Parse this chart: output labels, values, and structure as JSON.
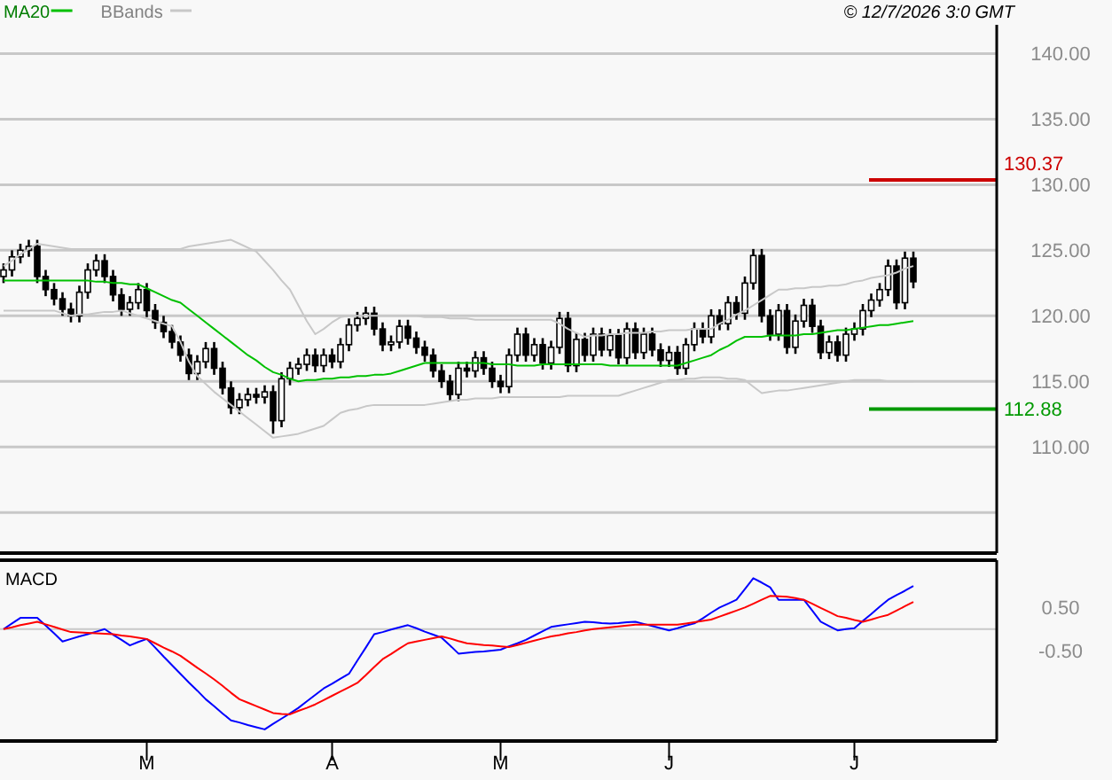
{
  "chart_data": [
    {
      "type": "candlestick",
      "legend": "top left",
      "grid": "y",
      "tick_labels": "y",
      "annotations": [
        "© 12/7/2026 3:0 GMT"
      ],
      "categories": [
        null,
        null,
        null,
        null,
        null,
        null,
        null,
        null,
        null,
        null,
        null,
        null,
        null,
        null,
        null,
        null,
        null,
        null,
        null,
        null,
        null,
        null,
        null,
        null,
        null,
        null,
        null,
        null,
        null,
        null,
        null,
        null,
        null,
        null,
        null,
        null,
        null,
        null,
        null,
        null,
        null,
        null,
        null,
        null,
        null,
        null,
        null,
        null,
        null,
        null,
        null,
        null,
        null,
        null,
        null,
        null,
        null,
        null,
        null,
        null,
        null,
        null,
        null,
        null,
        null,
        null,
        null,
        null,
        null,
        null,
        null,
        null,
        null,
        null,
        null,
        null,
        null,
        null,
        null,
        null,
        null,
        null,
        null,
        null,
        null,
        null,
        null,
        null,
        null,
        null,
        null,
        null,
        null,
        null,
        null,
        null,
        null,
        null,
        null,
        null,
        null,
        null,
        null,
        null,
        null,
        null,
        null,
        null,
        null
      ],
      "ylim": [
        101.9,
        142.2
      ],
      "yticks": [
        {
          "value": 105,
          "label": null
        },
        {
          "value": 110,
          "label": "110.00"
        },
        {
          "value": 115,
          "label": "115.00"
        },
        {
          "value": 120,
          "label": "120.00"
        },
        {
          "value": 125,
          "label": "125.00"
        },
        {
          "value": 130,
          "label": "130.00"
        },
        {
          "value": 135,
          "label": "135.00"
        },
        {
          "value": 140,
          "label": "140.00"
        }
      ],
      "ref_lines": [
        {
          "axis": "y",
          "value": 130.37,
          "label": "130.37",
          "color": "#cc0000"
        },
        {
          "axis": "y",
          "value": 112.88,
          "label": "112.88",
          "color": "#009900"
        }
      ],
      "ohlc": [
        [
          123.0,
          124.0,
          122.5,
          123.5
        ],
        [
          123.5,
          125.0,
          123.0,
          124.5
        ],
        [
          124.5,
          125.5,
          124.0,
          125.0
        ],
        [
          125.0,
          125.8,
          124.5,
          125.3
        ],
        [
          125.3,
          125.8,
          122.5,
          123.0
        ],
        [
          123.0,
          123.5,
          121.5,
          122.0
        ],
        [
          122.0,
          122.5,
          120.8,
          121.3
        ],
        [
          121.3,
          121.8,
          120.0,
          120.5
        ],
        [
          120.5,
          121.0,
          119.5,
          120.0
        ],
        [
          120.0,
          122.3,
          119.5,
          121.8
        ],
        [
          121.8,
          124.0,
          121.3,
          123.5
        ],
        [
          123.5,
          124.7,
          123.0,
          124.2
        ],
        [
          124.2,
          124.7,
          122.5,
          123.0
        ],
        [
          123.0,
          123.5,
          121.1,
          121.6
        ],
        [
          121.6,
          122.1,
          120.0,
          120.5
        ],
        [
          120.5,
          121.5,
          120.0,
          121.0
        ],
        [
          121.0,
          122.5,
          120.5,
          122.0
        ],
        [
          122.0,
          122.5,
          119.9,
          120.4
        ],
        [
          120.4,
          120.9,
          119.0,
          119.5
        ],
        [
          119.5,
          120.0,
          118.3,
          118.8
        ],
        [
          118.8,
          119.3,
          117.5,
          118.0
        ],
        [
          118.0,
          118.5,
          116.5,
          117.0
        ],
        [
          117.0,
          117.5,
          115.1,
          115.6
        ],
        [
          115.6,
          117.0,
          115.1,
          116.5
        ],
        [
          116.5,
          118.0,
          116.0,
          117.5
        ],
        [
          117.5,
          118.0,
          115.5,
          116.0
        ],
        [
          116.0,
          116.5,
          114.0,
          114.5
        ],
        [
          114.5,
          115.0,
          112.5,
          113.0
        ],
        [
          113.0,
          114.1,
          112.5,
          113.6
        ],
        [
          113.6,
          114.5,
          113.1,
          114.0
        ],
        [
          114.0,
          114.5,
          113.3,
          113.8
        ],
        [
          113.8,
          114.7,
          113.3,
          114.2
        ],
        [
          114.2,
          114.7,
          111.0,
          112.0
        ],
        [
          112.0,
          115.7,
          111.5,
          115.2
        ],
        [
          115.2,
          116.5,
          114.7,
          116.0
        ],
        [
          116.0,
          116.8,
          115.5,
          116.3
        ],
        [
          116.3,
          117.5,
          115.8,
          117.0
        ],
        [
          117.0,
          117.5,
          115.7,
          116.2
        ],
        [
          116.2,
          117.5,
          115.7,
          117.0
        ],
        [
          117.0,
          117.5,
          116.0,
          116.5
        ],
        [
          116.5,
          118.3,
          116.0,
          117.8
        ],
        [
          117.8,
          119.8,
          117.3,
          119.3
        ],
        [
          119.3,
          120.3,
          118.8,
          119.8
        ],
        [
          119.8,
          120.7,
          119.3,
          120.2
        ],
        [
          120.2,
          120.7,
          118.5,
          119.0
        ],
        [
          119.0,
          119.5,
          117.3,
          117.8
        ],
        [
          117.8,
          118.5,
          117.3,
          118.0
        ],
        [
          118.0,
          119.7,
          117.5,
          119.2
        ],
        [
          119.2,
          119.7,
          117.8,
          118.3
        ],
        [
          118.3,
          118.8,
          117.1,
          117.6
        ],
        [
          117.6,
          118.1,
          116.5,
          117.0
        ],
        [
          117.0,
          117.5,
          115.3,
          115.8
        ],
        [
          115.8,
          116.3,
          114.5,
          115.0
        ],
        [
          115.0,
          115.5,
          113.5,
          114.0
        ],
        [
          114.0,
          116.5,
          113.5,
          116.0
        ],
        [
          116.0,
          116.5,
          115.3,
          115.8
        ],
        [
          115.8,
          117.3,
          115.3,
          116.8
        ],
        [
          116.8,
          117.3,
          115.5,
          116.0
        ],
        [
          116.0,
          116.5,
          114.5,
          115.0
        ],
        [
          115.0,
          115.5,
          114.1,
          114.6
        ],
        [
          114.6,
          117.5,
          114.1,
          117.0
        ],
        [
          117.0,
          119.1,
          116.5,
          118.6
        ],
        [
          118.6,
          119.1,
          116.5,
          117.0
        ],
        [
          117.0,
          118.3,
          116.5,
          117.8
        ],
        [
          117.8,
          118.3,
          115.9,
          116.4
        ],
        [
          116.4,
          118.1,
          115.9,
          117.6
        ],
        [
          117.6,
          120.3,
          117.1,
          119.8
        ],
        [
          119.8,
          120.3,
          115.7,
          116.2
        ],
        [
          116.2,
          118.7,
          115.7,
          118.2
        ],
        [
          118.2,
          118.7,
          116.5,
          117.0
        ],
        [
          117.0,
          119.1,
          116.5,
          118.6
        ],
        [
          118.6,
          119.1,
          116.9,
          117.4
        ],
        [
          117.4,
          119.0,
          116.9,
          118.5
        ],
        [
          118.5,
          119.0,
          116.3,
          116.8
        ],
        [
          116.8,
          119.5,
          116.3,
          119.0
        ],
        [
          119.0,
          119.5,
          116.7,
          117.2
        ],
        [
          117.2,
          119.1,
          116.7,
          118.6
        ],
        [
          118.6,
          119.1,
          116.9,
          117.4
        ],
        [
          117.4,
          117.9,
          116.1,
          116.6
        ],
        [
          116.6,
          117.7,
          116.1,
          117.2
        ],
        [
          117.2,
          117.7,
          115.5,
          116.0
        ],
        [
          116.0,
          118.3,
          115.5,
          117.8
        ],
        [
          117.8,
          119.5,
          117.3,
          119.0
        ],
        [
          119.0,
          119.5,
          117.9,
          118.4
        ],
        [
          118.4,
          120.5,
          117.9,
          120.0
        ],
        [
          120.0,
          120.5,
          118.9,
          119.4
        ],
        [
          119.4,
          121.5,
          118.9,
          121.0
        ],
        [
          121.0,
          121.5,
          119.7,
          120.2
        ],
        [
          120.2,
          123.0,
          119.7,
          122.5
        ],
        [
          122.5,
          125.1,
          122.0,
          124.6
        ],
        [
          124.6,
          125.1,
          119.5,
          120.0
        ],
        [
          120.0,
          120.5,
          118.1,
          118.6
        ],
        [
          118.6,
          120.9,
          118.1,
          120.4
        ],
        [
          120.4,
          120.9,
          117.1,
          117.6
        ],
        [
          117.6,
          120.1,
          117.1,
          119.6
        ],
        [
          119.6,
          121.3,
          119.1,
          120.8
        ],
        [
          120.8,
          121.3,
          118.7,
          119.2
        ],
        [
          119.2,
          119.7,
          116.7,
          117.2
        ],
        [
          117.2,
          118.5,
          116.7,
          118.0
        ],
        [
          118.0,
          118.5,
          116.5,
          117.0
        ],
        [
          117.0,
          119.1,
          116.5,
          118.6
        ],
        [
          118.6,
          119.5,
          118.1,
          119.0
        ],
        [
          119.0,
          120.9,
          118.5,
          120.4
        ],
        [
          120.4,
          121.7,
          119.9,
          121.2
        ],
        [
          121.2,
          122.5,
          120.7,
          122.0
        ],
        [
          122.0,
          124.3,
          121.5,
          123.8
        ],
        [
          123.8,
          124.3,
          120.5,
          121.0
        ],
        [
          121.0,
          124.9,
          120.5,
          124.4
        ],
        [
          124.4,
          124.9,
          122.1,
          122.6
        ]
      ],
      "series": [
        {
          "type": "line",
          "name": "MA20",
          "color": "#00c000",
          "values": [
            122.7,
            122.7,
            122.7,
            122.7,
            122.7,
            122.7,
            122.7,
            122.7,
            122.7,
            122.7,
            122.7,
            122.6,
            122.6,
            122.5,
            122.5,
            122.4,
            122.4,
            122.1,
            121.8,
            121.5,
            121.2,
            121.0,
            120.5,
            120.0,
            119.5,
            119.0,
            118.5,
            118.0,
            117.5,
            117.0,
            116.6,
            116.1,
            115.7,
            115.5,
            115.2,
            115.0,
            115.1,
            115.1,
            115.2,
            115.2,
            115.3,
            115.3,
            115.4,
            115.4,
            115.5,
            115.5,
            115.6,
            115.8,
            116.0,
            116.2,
            116.4,
            116.4,
            116.4,
            116.4,
            116.4,
            116.4,
            116.4,
            116.4,
            116.3,
            116.3,
            116.3,
            116.2,
            116.2,
            116.2,
            116.3,
            116.3,
            116.3,
            116.3,
            116.3,
            116.3,
            116.3,
            116.3,
            116.2,
            116.2,
            116.2,
            116.2,
            116.2,
            116.2,
            116.2,
            116.2,
            116.2,
            116.4,
            116.6,
            116.8,
            117.0,
            117.4,
            117.7,
            118.1,
            118.4,
            118.4,
            118.4,
            118.5,
            118.5,
            118.5,
            118.5,
            118.6,
            118.6,
            118.7,
            118.8,
            118.9,
            118.9,
            119.0,
            119.1,
            119.2,
            119.3,
            119.3,
            119.4,
            119.5,
            119.6
          ]
        },
        {
          "type": "line",
          "name": "BBands",
          "color": "#c8c8c8",
          "values": [
            123.8,
            124.2,
            124.7,
            125.1,
            125.5,
            125.4,
            125.3,
            125.2,
            125.1,
            125.1,
            125.1,
            125.1,
            125.1,
            125.1,
            125.1,
            125.1,
            125.1,
            125.1,
            125.1,
            125.1,
            125.1,
            125.1,
            125.3,
            125.4,
            125.5,
            125.6,
            125.7,
            125.8,
            125.5,
            125.2,
            124.9,
            124.2,
            123.5,
            122.7,
            122.0,
            120.8,
            119.6,
            118.6,
            119.0,
            119.5,
            119.9,
            120.0,
            120.0,
            120.0,
            120.0,
            120.0,
            120.0,
            120.0,
            120.0,
            120.0,
            119.9,
            119.9,
            119.9,
            119.8,
            119.8,
            119.8,
            119.7,
            119.7,
            119.7,
            119.7,
            119.7,
            119.7,
            119.7,
            119.7,
            119.7,
            119.7,
            119.4,
            119.0,
            118.7,
            118.4,
            118.5,
            118.5,
            118.6,
            118.6,
            118.7,
            118.7,
            118.7,
            118.8,
            118.8,
            118.9,
            118.9,
            118.9,
            119.0,
            119.0,
            119.0,
            119.4,
            119.7,
            120.1,
            120.4,
            120.8,
            121.2,
            121.6,
            122.0,
            122.0,
            122.1,
            122.1,
            122.2,
            122.2,
            122.3,
            122.3,
            122.4,
            122.6,
            122.7,
            122.9,
            123.0,
            123.1,
            123.3,
            123.6,
            123.8
          ]
        },
        {
          "type": "line",
          "color": "#c8c8c8",
          "values": [
            120.4,
            120.4,
            120.4,
            120.4,
            120.4,
            120.4,
            120.4,
            120.2,
            120.0,
            120.1,
            120.1,
            120.2,
            120.3,
            120.3,
            120.4,
            120.2,
            120.0,
            119.8,
            119.6,
            119.4,
            119.2,
            118.0,
            116.5,
            115.4,
            114.8,
            114.2,
            113.7,
            113.2,
            112.7,
            112.2,
            111.7,
            111.2,
            110.7,
            110.8,
            110.9,
            111.0,
            111.2,
            111.4,
            111.6,
            112.1,
            112.6,
            112.8,
            112.9,
            113.1,
            113.2,
            113.2,
            113.2,
            113.2,
            113.2,
            113.2,
            113.2,
            113.3,
            113.4,
            113.5,
            113.6,
            113.6,
            113.7,
            113.7,
            113.7,
            113.8,
            113.8,
            113.8,
            113.8,
            113.8,
            113.8,
            113.8,
            113.8,
            113.9,
            113.9,
            113.9,
            113.9,
            113.9,
            113.9,
            113.9,
            114.1,
            114.3,
            114.5,
            114.7,
            114.9,
            115.1,
            115.1,
            115.2,
            115.2,
            115.3,
            115.3,
            115.3,
            115.2,
            115.2,
            115.1,
            114.6,
            114.1,
            114.2,
            114.3,
            114.3,
            114.4,
            114.5,
            114.6,
            114.7,
            114.8,
            114.9,
            115.0,
            115.1,
            115.1,
            115.1,
            115.1,
            115.0,
            115.0,
            115.0,
            115.0
          ]
        }
      ]
    },
    {
      "type": "line",
      "title": "MACD",
      "categories": [
        null,
        null,
        null,
        null,
        null,
        null,
        null,
        null,
        null,
        null,
        null,
        null,
        null,
        null,
        null,
        null,
        null,
        "M",
        null,
        null,
        null,
        null,
        null,
        null,
        null,
        null,
        null,
        null,
        null,
        null,
        null,
        null,
        null,
        null,
        null,
        null,
        null,
        null,
        null,
        "A",
        null,
        null,
        null,
        null,
        null,
        null,
        null,
        null,
        null,
        null,
        null,
        null,
        null,
        null,
        null,
        null,
        null,
        null,
        null,
        "M",
        null,
        null,
        null,
        null,
        null,
        null,
        null,
        null,
        null,
        null,
        null,
        null,
        null,
        null,
        null,
        null,
        null,
        null,
        null,
        "J",
        null,
        null,
        null,
        null,
        null,
        null,
        null,
        null,
        null,
        null,
        null,
        null,
        null,
        null,
        null,
        null,
        null,
        null,
        null,
        null,
        null,
        "J",
        null,
        null,
        null,
        null,
        null,
        null,
        null
      ],
      "ylim": [
        -2.6,
        1.6
      ],
      "yticks": [
        {
          "value": -0.5,
          "label": "-0.50"
        },
        {
          "value": 0.5,
          "label": "0.50"
        }
      ],
      "ref_lines": [
        {
          "axis": "y",
          "value": 0,
          "color": "#c8c8c8"
        }
      ],
      "series": [
        {
          "color": "#0000ff",
          "values": [
            0,
            0.13,
            0.26,
            0.26,
            0.26,
            0.08,
            -0.1,
            -0.29,
            -0.23,
            -0.17,
            -0.12,
            -0.06,
            0,
            -0.13,
            -0.25,
            -0.38,
            -0.3,
            -0.23,
            -0.43,
            -0.64,
            -0.84,
            -1.04,
            -1.24,
            -1.43,
            -1.63,
            -1.79,
            -1.96,
            -2.12,
            -2.17,
            -2.23,
            -2.28,
            -2.33,
            -2.2,
            -2.08,
            -1.96,
            -1.83,
            -1.68,
            -1.53,
            -1.38,
            -1.27,
            -1.15,
            -1.04,
            -0.73,
            -0.43,
            -0.12,
            -0.07,
            -0.01,
            0.04,
            0.09,
            0.02,
            -0.06,
            -0.13,
            -0.2,
            -0.38,
            -0.57,
            -0.55,
            -0.53,
            -0.52,
            -0.5,
            -0.48,
            -0.4,
            -0.33,
            -0.25,
            -0.15,
            -0.05,
            0.05,
            0.08,
            0.11,
            0.14,
            0.17,
            0.16,
            0.14,
            0.13,
            0.14,
            0.16,
            0.17,
            0.12,
            0.07,
            0.02,
            -0.03,
            0.02,
            0.08,
            0.13,
            0.25,
            0.38,
            0.5,
            0.59,
            0.68,
            0.93,
            1.18,
            1.08,
            0.97,
            0.68,
            0.68,
            0.68,
            0.68,
            0.43,
            0.17,
            0.07,
            -0.03,
            0,
            0.02,
            0.19,
            0.35,
            0.52,
            0.68,
            0.79,
            0.89,
            1.0
          ]
        },
        {
          "color": "#ff0000",
          "values": [
            0,
            0.04,
            0.09,
            0.13,
            0.17,
            0.11,
            0.05,
            -0.01,
            -0.07,
            -0.08,
            -0.09,
            -0.1,
            -0.11,
            -0.12,
            -0.15,
            -0.17,
            -0.2,
            -0.23,
            -0.33,
            -0.43,
            -0.52,
            -0.62,
            -0.76,
            -0.9,
            -1.03,
            -1.17,
            -1.32,
            -1.48,
            -1.63,
            -1.71,
            -1.79,
            -1.87,
            -1.95,
            -1.97,
            -1.98,
            -1.9,
            -1.83,
            -1.75,
            -1.65,
            -1.55,
            -1.45,
            -1.35,
            -1.25,
            -1.07,
            -0.88,
            -0.7,
            -0.58,
            -0.45,
            -0.33,
            -0.29,
            -0.25,
            -0.21,
            -0.17,
            -0.22,
            -0.28,
            -0.33,
            -0.35,
            -0.37,
            -0.38,
            -0.4,
            -0.42,
            -0.37,
            -0.32,
            -0.27,
            -0.22,
            -0.17,
            -0.14,
            -0.1,
            -0.07,
            -0.03,
            0,
            0.02,
            0.04,
            0.06,
            0.08,
            0.1,
            0.1,
            0.1,
            0.1,
            0.1,
            0.1,
            0.13,
            0.16,
            0.19,
            0.22,
            0.29,
            0.36,
            0.43,
            0.5,
            0.59,
            0.68,
            0.77,
            0.76,
            0.75,
            0.72,
            0.68,
            0.59,
            0.49,
            0.4,
            0.3,
            0.26,
            0.21,
            0.17,
            0.22,
            0.28,
            0.33,
            0.43,
            0.53,
            0.63
          ]
        }
      ]
    }
  ]
}
